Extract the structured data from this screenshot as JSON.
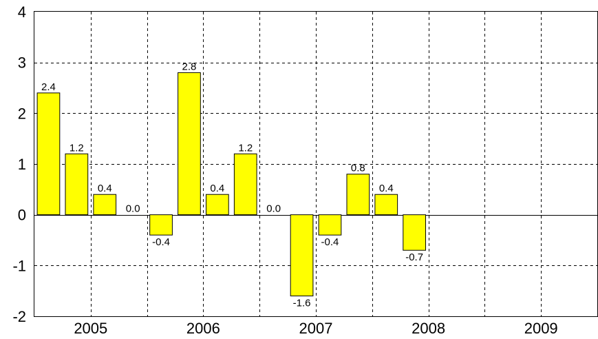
{
  "chart_data": {
    "type": "bar",
    "title": "",
    "xlabel": "",
    "ylabel": "",
    "ylim": [
      -2,
      4
    ],
    "yticks": [
      "4",
      "3",
      "2",
      "1",
      "0",
      "-1",
      "-2"
    ],
    "ytick_values": [
      4,
      3,
      2,
      1,
      0,
      -1,
      -2
    ],
    "years": [
      "2005",
      "2006",
      "2007",
      "2008",
      "2009"
    ],
    "bars_per_year": 4,
    "values": [
      2.4,
      1.2,
      0.4,
      0.0,
      -0.4,
      2.8,
      0.4,
      1.2,
      0.0,
      -1.6,
      -0.4,
      0.8,
      0.4,
      -0.7
    ],
    "labels": [
      "2.4",
      "1.2",
      "0.4",
      "0.0",
      "-0.4",
      "2.8",
      "0.4",
      "1.2",
      "0.0",
      "-1.6",
      "-0.4",
      "0.8",
      "0.4",
      "-0.7"
    ],
    "grid": true,
    "bar_color": "#ffff00"
  }
}
